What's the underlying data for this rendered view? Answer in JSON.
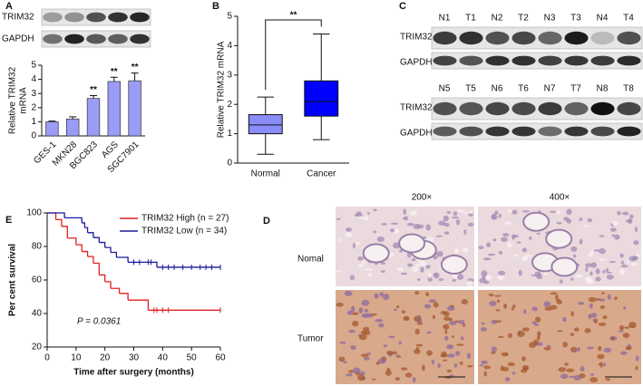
{
  "panel_labels": [
    "A",
    "B",
    "C",
    "D",
    "E"
  ],
  "blot_a": {
    "rows": [
      "TRIM32",
      "GAPDH"
    ]
  },
  "blot_c": {
    "groups": [
      {
        "lanes": [
          "N1",
          "T1",
          "N2",
          "T2",
          "N3",
          "T3",
          "N4",
          "T4"
        ],
        "rows": [
          "TRIM32",
          "GAPDH"
        ]
      },
      {
        "lanes": [
          "N5",
          "T5",
          "N6",
          "T6",
          "N7",
          "T7",
          "N8",
          "T8"
        ],
        "rows": [
          "TRIM32",
          "GAPDH"
        ]
      }
    ]
  },
  "ihc": {
    "columns": [
      "200×",
      "400×"
    ],
    "rows": [
      "Nomal",
      "Tumor"
    ]
  },
  "chart_data": [
    {
      "type": "bar",
      "ylabel": [
        "Relative TRIM32",
        "mRNA"
      ],
      "categories": [
        "GES-1",
        "MKN28",
        "BGC823",
        "AGS",
        "SGC7901"
      ],
      "values": [
        1.0,
        1.2,
        2.65,
        3.85,
        3.9
      ],
      "errors": [
        0.05,
        0.15,
        0.2,
        0.3,
        0.55
      ],
      "significance": [
        null,
        null,
        "**",
        "**",
        "**"
      ],
      "color": "#9a9cf5",
      "ylim": [
        0,
        5
      ],
      "yticks": [
        0,
        1,
        2,
        3,
        4,
        5
      ]
    },
    {
      "type": "box",
      "ylabel": "Relative TRIM32 mRNA",
      "categories": [
        "Normal",
        "Cancer"
      ],
      "boxes": [
        {
          "min": 0.3,
          "q1": 1.0,
          "median": 1.3,
          "q3": 1.65,
          "max": 2.25
        },
        {
          "min": 0.8,
          "q1": 1.6,
          "median": 2.1,
          "q3": 2.8,
          "max": 4.4
        }
      ],
      "colors": [
        "#8a8cf8",
        "#0000ff"
      ],
      "significance": "**",
      "ylim": [
        0,
        5
      ],
      "yticks": [
        0,
        1,
        2,
        3,
        4,
        5
      ]
    },
    {
      "type": "line",
      "step": true,
      "ylabel": "Per cent survival",
      "xlabel": "Time after surgery (months)",
      "annotation": "P = 0.0361",
      "xlim": [
        0,
        60
      ],
      "xticks": [
        0,
        10,
        20,
        30,
        40,
        50,
        60
      ],
      "ylim": [
        20,
        100
      ],
      "yticks": [
        20,
        40,
        60,
        80,
        100
      ],
      "series": [
        {
          "name": "TRIM32 High (n = 27)",
          "color": "#e02020",
          "x": [
            0,
            3,
            5,
            7,
            10,
            12,
            14,
            16,
            18,
            20,
            22,
            25,
            28,
            35
          ],
          "values": [
            100,
            96,
            92,
            85,
            81,
            77,
            74,
            70,
            63,
            59,
            55,
            52,
            48,
            42
          ],
          "censored": [
            37,
            38,
            40,
            42,
            60
          ]
        },
        {
          "name": "TRIM32 Low (n = 34)",
          "color": "#1a1a9a",
          "x": [
            0,
            6,
            12,
            13,
            14,
            16,
            18,
            20,
            22,
            24,
            28,
            38
          ],
          "values": [
            100,
            97.1,
            94.1,
            91.2,
            88.2,
            85.3,
            82.4,
            79.4,
            76.5,
            73.5,
            70.6,
            67.6
          ],
          "censored": [
            30,
            32,
            35,
            36,
            40,
            42,
            44,
            47,
            50,
            53,
            55,
            57,
            60
          ]
        }
      ]
    }
  ]
}
